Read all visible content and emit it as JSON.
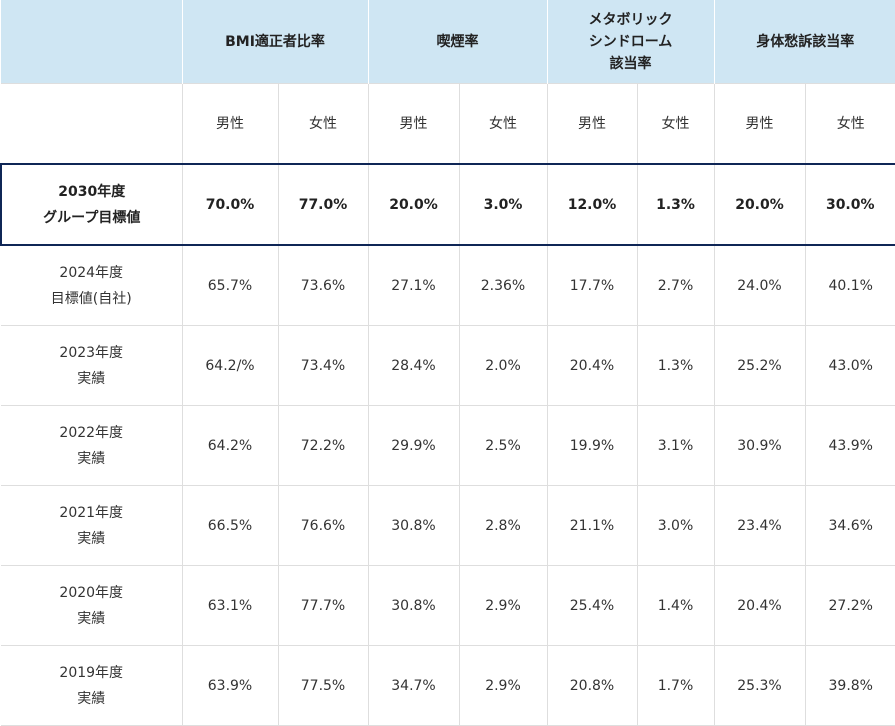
{
  "headers": {
    "bmi": "BMI適正者比率",
    "smoking": "喫煙率",
    "metabolic_line1": "メタボリック",
    "metabolic_line2": "シンドローム",
    "metabolic_line3": "該当率",
    "physical": "身体愁訴該当率"
  },
  "sexes": [
    "男性",
    "女性",
    "男性",
    "女性",
    "男性",
    "女性",
    "男性",
    "女性"
  ],
  "rows": [
    {
      "label1": "2030年度",
      "label2": "グループ目標値",
      "values": [
        "70.0%",
        "77.0%",
        "20.0%",
        "3.0%",
        "12.0%",
        "1.3%",
        "20.0%",
        "30.0%"
      ]
    },
    {
      "label1": "2024年度",
      "label2": "目標値(自社)",
      "values": [
        "65.7%",
        "73.6%",
        "27.1%",
        "2.36%",
        "17.7%",
        "2.7%",
        "24.0%",
        "40.1%"
      ]
    },
    {
      "label1": "2023年度",
      "label2": "実績",
      "values": [
        "64.2/%",
        "73.4%",
        "28.4%",
        "2.0%",
        "20.4%",
        "1.3%",
        "25.2%",
        "43.0%"
      ]
    },
    {
      "label1": "2022年度",
      "label2": "実績",
      "values": [
        "64.2%",
        "72.2%",
        "29.9%",
        "2.5%",
        "19.9%",
        "3.1%",
        "30.9%",
        "43.9%"
      ]
    },
    {
      "label1": "2021年度",
      "label2": "実績",
      "values": [
        "66.5%",
        "76.6%",
        "30.8%",
        "2.8%",
        "21.1%",
        "3.0%",
        "23.4%",
        "34.6%"
      ]
    },
    {
      "label1": "2020年度",
      "label2": "実績",
      "values": [
        "63.1%",
        "77.7%",
        "30.8%",
        "2.9%",
        "25.4%",
        "1.4%",
        "20.4%",
        "27.2%"
      ]
    },
    {
      "label1": "2019年度",
      "label2": "実績",
      "values": [
        "63.9%",
        "77.5%",
        "34.7%",
        "2.9%",
        "20.8%",
        "1.7%",
        "25.3%",
        "39.8%"
      ]
    }
  ],
  "colors": {
    "header_bg": "#cfe6f3",
    "target_border": "#0f2656",
    "grid": "#dedede"
  }
}
